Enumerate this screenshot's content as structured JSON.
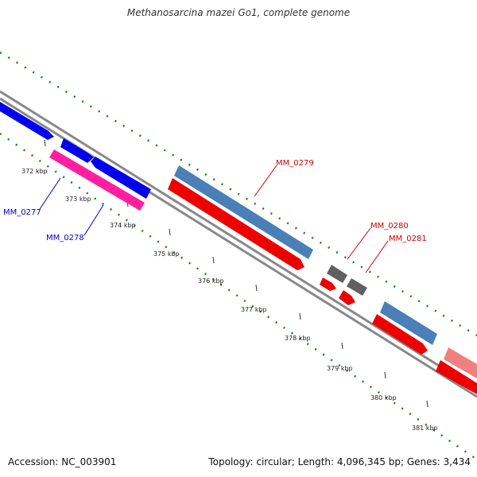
{
  "title": "Methanosarcina mazei Go1, complete genome",
  "footer": {
    "accession": "Accession: NC_003901",
    "summary": "Topology: circular; Length: 4,096,345 bp; Genes: 3,434"
  },
  "ticks": [
    "372 kbp",
    "373 kbp",
    "374 kbp",
    "375 kbp",
    "376 kbp",
    "377 kbp",
    "378 kbp",
    "379 kbp",
    "380 kbp",
    "381 kbp"
  ],
  "labels": {
    "mm0277": "MM_0277",
    "mm0278": "MM_0278",
    "mm0279": "MM_0279",
    "mm0280": "MM_0280",
    "mm0281": "MM_0281"
  },
  "colors": {
    "backbone": "#888888",
    "dotted_track": "#1a7f1a",
    "blue_cds": "#0000ee",
    "steelblue_cds": "#4a7fb8",
    "magenta_cds": "#ff1ea0",
    "red_cds": "#ee0000",
    "gray_cds": "#606060",
    "pink_cds": "#f08080",
    "label_blue": "#0000cc",
    "label_red": "#cc0000"
  }
}
